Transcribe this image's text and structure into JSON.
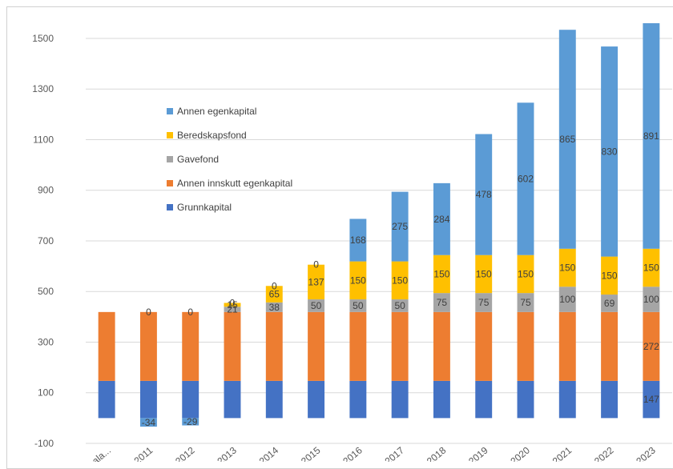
{
  "chart_data": {
    "type": "bar",
    "stacked": true,
    "categories": [
      "Åpn.bala...",
      "2011",
      "2012",
      "2013",
      "2014",
      "2015",
      "2016",
      "2017",
      "2018",
      "2019",
      "2020",
      "2021",
      "2022",
      "2023"
    ],
    "ylim": [
      -100,
      1560
    ],
    "yticks": [
      -100,
      100,
      300,
      500,
      700,
      900,
      1100,
      1300,
      1500
    ],
    "grid": true,
    "legend_position": "top-left inside",
    "series": [
      {
        "name": "Grunnkapital",
        "color": "#4472c4",
        "values": [
          147,
          147,
          147,
          147,
          147,
          147,
          147,
          147,
          147,
          147,
          147,
          147,
          147,
          147
        ],
        "labels": [
          null,
          null,
          null,
          null,
          null,
          null,
          null,
          null,
          null,
          null,
          null,
          null,
          null,
          "147"
        ]
      },
      {
        "name": "Annen innskutt egenkapital",
        "color": "#ed7d31",
        "values": [
          272,
          272,
          272,
          272,
          272,
          272,
          272,
          272,
          272,
          272,
          272,
          272,
          272,
          272
        ],
        "labels": [
          null,
          null,
          null,
          null,
          null,
          null,
          null,
          null,
          null,
          null,
          null,
          null,
          null,
          "272"
        ]
      },
      {
        "name": "Gavefond",
        "color": "#a5a5a5",
        "values": [
          0,
          0,
          0,
          21,
          38,
          50,
          50,
          50,
          75,
          75,
          75,
          100,
          69,
          100
        ],
        "labels": [
          null,
          "0",
          "0",
          "21",
          "38",
          "50",
          "50",
          "50",
          "75",
          "75",
          "75",
          "100",
          "69",
          "100"
        ]
      },
      {
        "name": "Beredskapsfond",
        "color": "#ffc000",
        "values": [
          0,
          0,
          0,
          15,
          65,
          137,
          150,
          150,
          150,
          150,
          150,
          150,
          150,
          150
        ],
        "labels": [
          null,
          null,
          null,
          "15",
          "65",
          "137",
          "150",
          "150",
          "150",
          "150",
          "150",
          "150",
          "150",
          "150"
        ]
      },
      {
        "name": "Annen egenkapital",
        "color": "#5b9bd5",
        "values": [
          0,
          -34,
          -29,
          0,
          0,
          0,
          168,
          275,
          284,
          478,
          602,
          865,
          830,
          891
        ],
        "labels": [
          null,
          "-34",
          "-29",
          "0",
          "0",
          "0",
          "168",
          "275",
          "284",
          "478",
          "602",
          "865",
          "830",
          "891"
        ]
      }
    ]
  }
}
